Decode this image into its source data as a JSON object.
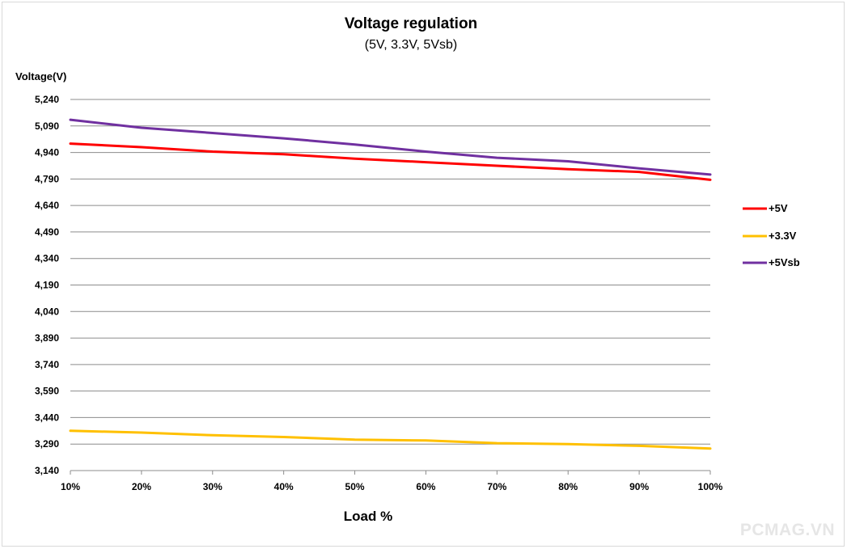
{
  "colors": {
    "five_v": "#ff0000",
    "three_three_v": "#ffc000",
    "five_vsb": "#7030a0",
    "gridline": "#8c8c8c",
    "watermark": "#e6e6e6"
  },
  "watermark": "PCMAG.VN",
  "chart_data": {
    "type": "line",
    "title": "Voltage regulation",
    "subtitle": "(5V, 3.3V, 5Vsb)",
    "xlabel": "Load %",
    "ylabel": "Voltage(V)",
    "categories": [
      "10%",
      "20%",
      "30%",
      "40%",
      "50%",
      "60%",
      "70%",
      "80%",
      "90%",
      "100%"
    ],
    "yticks": [
      "5,240",
      "5,090",
      "4,940",
      "4,790",
      "4,640",
      "4,490",
      "4,340",
      "4,190",
      "4,040",
      "3,890",
      "3,740",
      "3,590",
      "3,440",
      "3,290",
      "3,140"
    ],
    "ylim": [
      3.14,
      5.24
    ],
    "grid": true,
    "legend_position": "right",
    "series": [
      {
        "name": "+5V",
        "color_key": "five_v",
        "values": [
          4.99,
          4.97,
          4.945,
          4.93,
          4.905,
          4.885,
          4.865,
          4.845,
          4.83,
          4.785
        ]
      },
      {
        "name": "+3.3V",
        "color_key": "three_three_v",
        "values": [
          3.365,
          3.355,
          3.34,
          3.33,
          3.315,
          3.31,
          3.295,
          3.29,
          3.28,
          3.265
        ]
      },
      {
        "name": "+5Vsb",
        "color_key": "five_vsb",
        "values": [
          5.125,
          5.08,
          5.05,
          5.02,
          4.985,
          4.945,
          4.91,
          4.89,
          4.85,
          4.815
        ]
      }
    ]
  }
}
